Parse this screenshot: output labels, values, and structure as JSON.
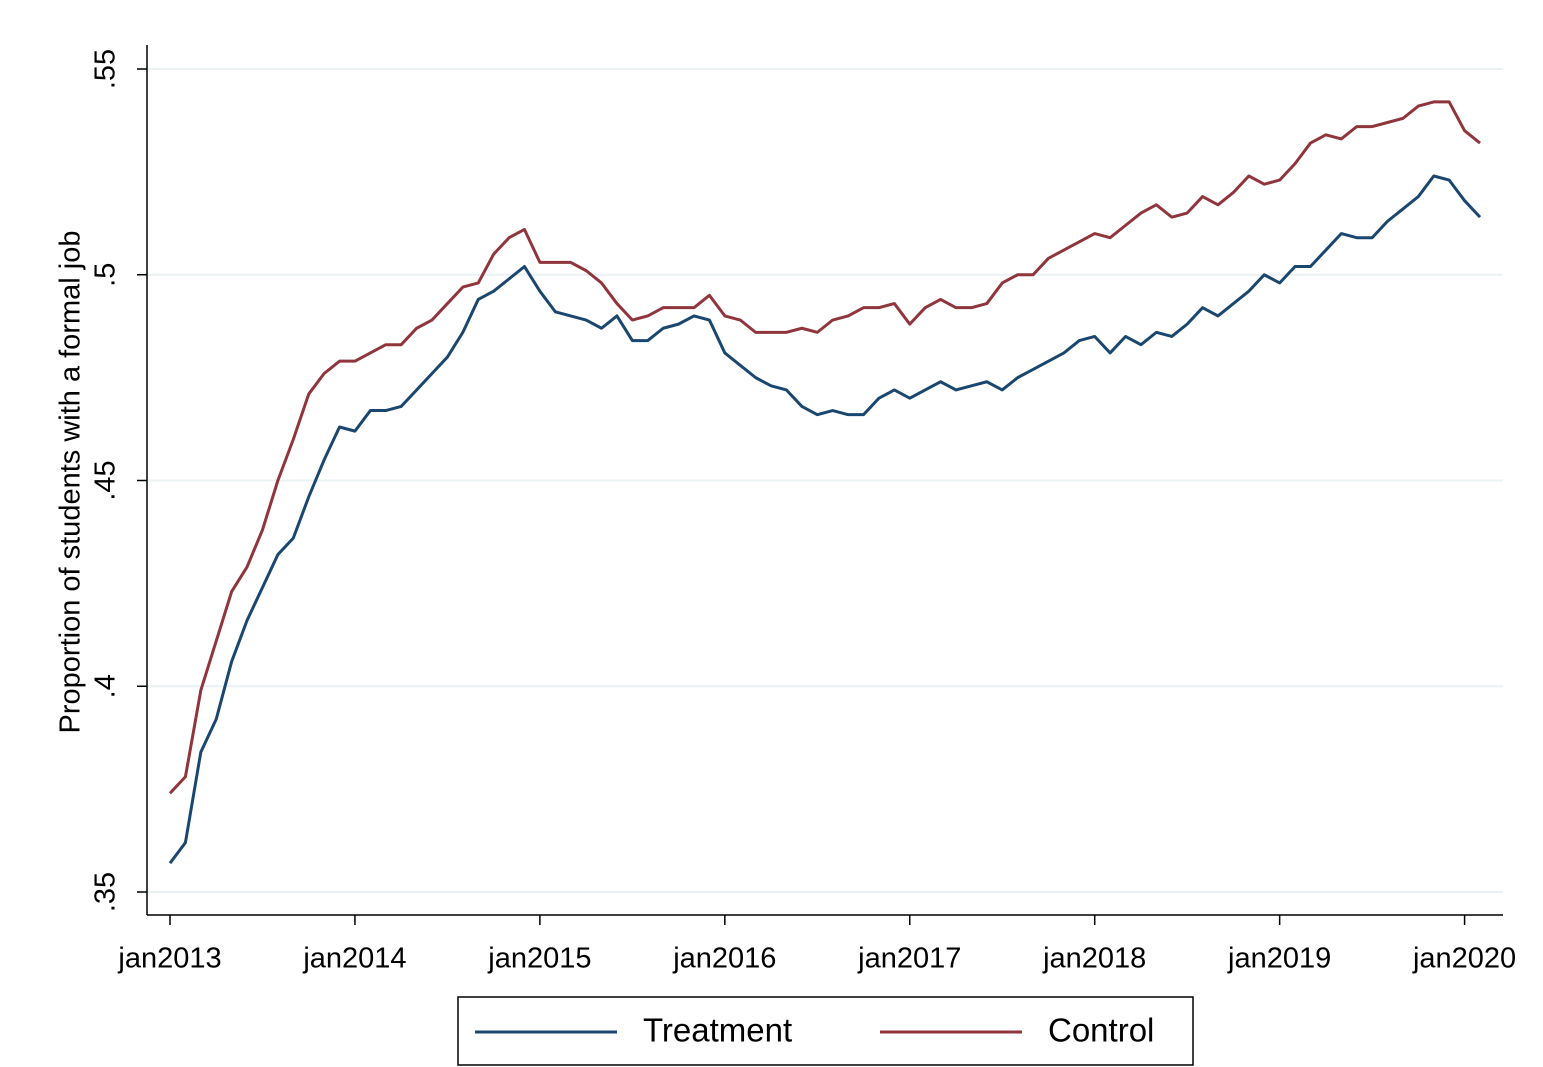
{
  "chart_data": {
    "type": "line",
    "y_label": "Proportion of students with a formal job",
    "x": [
      "2013-01",
      "2013-02",
      "2013-03",
      "2013-04",
      "2013-05",
      "2013-06",
      "2013-07",
      "2013-08",
      "2013-09",
      "2013-10",
      "2013-11",
      "2013-12",
      "2014-01",
      "2014-02",
      "2014-03",
      "2014-04",
      "2014-05",
      "2014-06",
      "2014-07",
      "2014-08",
      "2014-09",
      "2014-10",
      "2014-11",
      "2014-12",
      "2015-01",
      "2015-02",
      "2015-03",
      "2015-04",
      "2015-05",
      "2015-06",
      "2015-07",
      "2015-08",
      "2015-09",
      "2015-10",
      "2015-11",
      "2015-12",
      "2016-01",
      "2016-02",
      "2016-03",
      "2016-04",
      "2016-05",
      "2016-06",
      "2016-07",
      "2016-08",
      "2016-09",
      "2016-10",
      "2016-11",
      "2016-12",
      "2017-01",
      "2017-02",
      "2017-03",
      "2017-04",
      "2017-05",
      "2017-06",
      "2017-07",
      "2017-08",
      "2017-09",
      "2017-10",
      "2017-11",
      "2017-12",
      "2018-01",
      "2018-02",
      "2018-03",
      "2018-04",
      "2018-05",
      "2018-06",
      "2018-07",
      "2018-08",
      "2018-09",
      "2018-10",
      "2018-11",
      "2018-12",
      "2019-01",
      "2019-02",
      "2019-03",
      "2019-04",
      "2019-05",
      "2019-06",
      "2019-07",
      "2019-08",
      "2019-09",
      "2019-10",
      "2019-11",
      "2019-12",
      "2020-01",
      "2020-02"
    ],
    "series": [
      {
        "name": "Treatment",
        "color": "#1a476f",
        "values": [
          0.357,
          0.362,
          0.384,
          0.392,
          0.406,
          0.416,
          0.424,
          0.432,
          0.436,
          0.446,
          0.455,
          0.463,
          0.462,
          0.467,
          0.467,
          0.468,
          0.472,
          0.476,
          0.48,
          0.486,
          0.494,
          0.496,
          0.499,
          0.502,
          0.496,
          0.491,
          0.49,
          0.489,
          0.487,
          0.49,
          0.484,
          0.484,
          0.487,
          0.488,
          0.49,
          0.489,
          0.481,
          0.478,
          0.475,
          0.473,
          0.472,
          0.468,
          0.466,
          0.467,
          0.466,
          0.466,
          0.47,
          0.472,
          0.47,
          0.472,
          0.474,
          0.472,
          0.473,
          0.474,
          0.472,
          0.475,
          0.477,
          0.479,
          0.481,
          0.484,
          0.485,
          0.481,
          0.485,
          0.483,
          0.486,
          0.485,
          0.488,
          0.492,
          0.49,
          0.493,
          0.496,
          0.5,
          0.498,
          0.502,
          0.502,
          0.506,
          0.51,
          0.509,
          0.509,
          0.513,
          0.516,
          0.519,
          0.524,
          0.523,
          0.518,
          0.514
        ]
      },
      {
        "name": "Control",
        "color": "#90353b",
        "values": [
          0.374,
          0.378,
          0.399,
          0.411,
          0.423,
          0.429,
          0.438,
          0.45,
          0.46,
          0.471,
          0.476,
          0.479,
          0.479,
          0.481,
          0.483,
          0.483,
          0.487,
          0.489,
          0.493,
          0.497,
          0.498,
          0.505,
          0.509,
          0.511,
          0.503,
          0.503,
          0.503,
          0.501,
          0.498,
          0.493,
          0.489,
          0.49,
          0.492,
          0.492,
          0.492,
          0.495,
          0.49,
          0.489,
          0.486,
          0.486,
          0.486,
          0.487,
          0.486,
          0.489,
          0.49,
          0.492,
          0.492,
          0.493,
          0.488,
          0.492,
          0.494,
          0.492,
          0.492,
          0.493,
          0.498,
          0.5,
          0.5,
          0.504,
          0.506,
          0.508,
          0.51,
          0.509,
          0.512,
          0.515,
          0.517,
          0.514,
          0.515,
          0.519,
          0.517,
          0.52,
          0.524,
          0.522,
          0.523,
          0.527,
          0.532,
          0.534,
          0.533,
          0.536,
          0.536,
          0.537,
          0.538,
          0.541,
          0.542,
          0.542,
          0.535,
          0.532
        ]
      }
    ],
    "xlim": [
      "2013-01",
      "2020-02"
    ],
    "xticks": [
      {
        "value": "2013-01",
        "label": "jan2013"
      },
      {
        "value": "2014-01",
        "label": "jan2014"
      },
      {
        "value": "2015-01",
        "label": "jan2015"
      },
      {
        "value": "2016-01",
        "label": "jan2016"
      },
      {
        "value": "2017-01",
        "label": "jan2017"
      },
      {
        "value": "2018-01",
        "label": "jan2018"
      },
      {
        "value": "2019-01",
        "label": "jan2019"
      },
      {
        "value": "2020-01",
        "label": "jan2020"
      }
    ],
    "ylim": [
      0.35,
      0.55
    ],
    "yticks": [
      {
        "value": 0.35,
        "label": ".35"
      },
      {
        "value": 0.4,
        "label": ".4"
      },
      {
        "value": 0.45,
        "label": ".45"
      },
      {
        "value": 0.5,
        "label": ".5"
      },
      {
        "value": 0.55,
        "label": ".55"
      }
    ],
    "grid": true,
    "legend": "bottom"
  }
}
